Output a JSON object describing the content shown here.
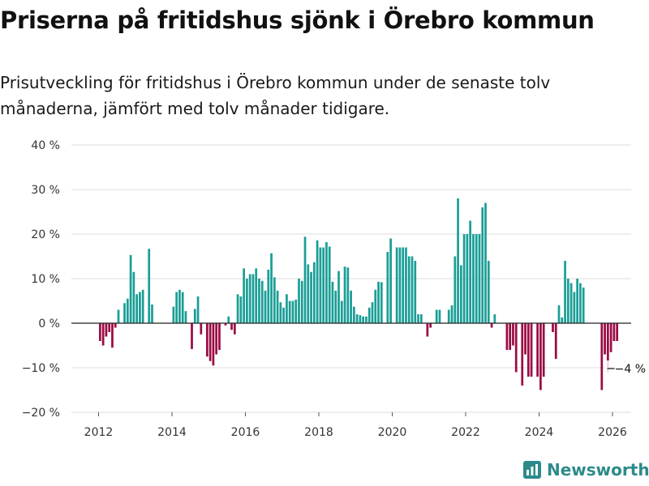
{
  "title": "Priserna på fritidshus sjönk i Örebro kommun",
  "subtitle": "Prisutveckling för fritidshus i Örebro kommun under de senaste tolv månaderna, jämfört med tolv månader tidigare.",
  "brand": {
    "name": "Newsworthy",
    "icon": "newsworthy-logo-icon"
  },
  "colors": {
    "positive": "#1a9e96",
    "negative": "#9b0a44",
    "grid": "#dddddd",
    "zero": "#222222",
    "brand": "#2d8a8a"
  },
  "chart_data": {
    "type": "bar",
    "title": "Priserna på fritidshus sjönk i Örebro kommun",
    "xlabel": "",
    "ylabel": "",
    "ylim": [
      -20,
      40
    ],
    "yticks": [
      -20,
      -10,
      0,
      10,
      20,
      30,
      40
    ],
    "ytick_labels": [
      "−20 %",
      "−10 %",
      "0 %",
      "10 %",
      "20 %",
      "30 %",
      "40 %"
    ],
    "xticks": [
      2012,
      2014,
      2016,
      2018,
      2020,
      2022,
      2024,
      2026
    ],
    "xtick_labels": [
      "2012",
      "2014",
      "2016",
      "2018",
      "2020",
      "2022",
      "2024",
      "2026"
    ],
    "grid": true,
    "start_year": 2012,
    "start_month": 1,
    "values": [
      -4,
      -5,
      -3,
      -2,
      -5.5,
      -1,
      3,
      0,
      4.5,
      5.5,
      15.3,
      11.5,
      6.5,
      7,
      7.5,
      0,
      16.7,
      4.2,
      null,
      null,
      null,
      null,
      null,
      null,
      3.7,
      7,
      7.5,
      7,
      2.7,
      null,
      -5.8,
      3.2,
      6,
      -2.5,
      null,
      -7.5,
      -8.5,
      -9.5,
      -7,
      -6,
      null,
      -0.5,
      1.5,
      -1.5,
      -2.5,
      6.5,
      6,
      12.3,
      10,
      11,
      11,
      12.3,
      10,
      9.5,
      7.3,
      12,
      15.7,
      10.3,
      7.3,
      4.7,
      3.5,
      6.5,
      5,
      5,
      5.3,
      10,
      9.5,
      19.4,
      13.2,
      11.5,
      13.7,
      18.6,
      17,
      17,
      18.2,
      17.2,
      9.3,
      7.3,
      11.7,
      5,
      12.7,
      12.5,
      7.3,
      3.7,
      2,
      1.8,
      1.5,
      1.5,
      3.5,
      4.7,
      7.5,
      9.3,
      9.2,
      null,
      16,
      19,
      null,
      17,
      17,
      17,
      17,
      15,
      15,
      14,
      2,
      2,
      null,
      -3,
      -1,
      null,
      3,
      3,
      null,
      null,
      3,
      4,
      15,
      28,
      13,
      20,
      20,
      23,
      20,
      20,
      20,
      26,
      27,
      14,
      -1,
      2,
      null,
      null,
      null,
      -6,
      -6,
      -5,
      -11,
      null,
      -14,
      -7,
      -12,
      -12,
      null,
      -12,
      -15,
      -12,
      null,
      null,
      -2,
      -8,
      4,
      1.3,
      14,
      10,
      9,
      7,
      10,
      9,
      8,
      null,
      null,
      null,
      null,
      null,
      -15,
      -7,
      -11,
      -6.5,
      -4,
      -4
    ],
    "last_value_label": "−4 %",
    "highlight": "last"
  }
}
